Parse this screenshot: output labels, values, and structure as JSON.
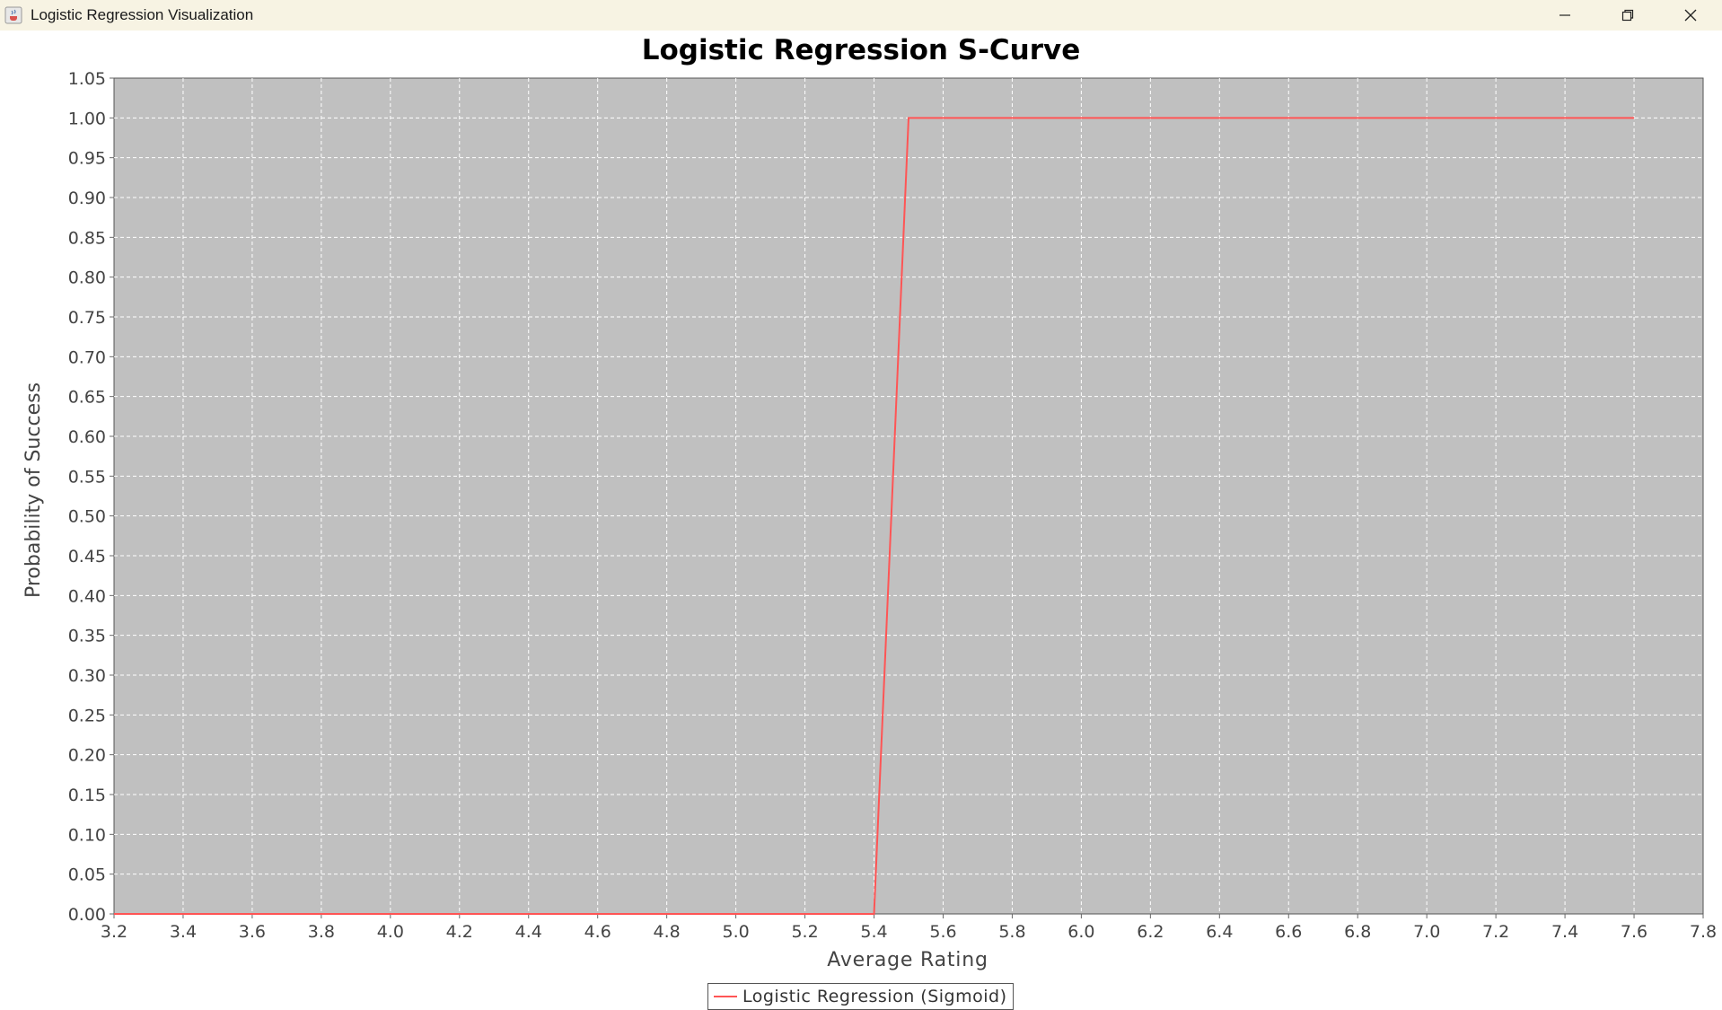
{
  "window": {
    "title": "Logistic Regression Visualization",
    "icon": "java-cup-icon",
    "controls": [
      "minimize-icon",
      "restore-icon",
      "close-icon"
    ]
  },
  "chart_data": {
    "type": "line",
    "title": "Logistic Regression S-Curve",
    "xlabel": "Average Rating",
    "ylabel": "Probability of Success",
    "xlim": [
      3.2,
      7.8
    ],
    "ylim": [
      0.0,
      1.05
    ],
    "x_ticks": [
      "3.2",
      "3.4",
      "3.6",
      "3.8",
      "4.0",
      "4.2",
      "4.4",
      "4.6",
      "4.8",
      "5.0",
      "5.2",
      "5.4",
      "5.6",
      "5.8",
      "6.0",
      "6.2",
      "6.4",
      "6.6",
      "6.8",
      "7.0",
      "7.2",
      "7.4",
      "7.6",
      "7.8"
    ],
    "y_ticks": [
      "0.00",
      "0.05",
      "0.10",
      "0.15",
      "0.20",
      "0.25",
      "0.30",
      "0.35",
      "0.40",
      "0.45",
      "0.50",
      "0.55",
      "0.60",
      "0.65",
      "0.70",
      "0.75",
      "0.80",
      "0.85",
      "0.90",
      "0.95",
      "1.00",
      "1.05"
    ],
    "grid": true,
    "legend_position": "bottom",
    "plot_background": "#c0c0c0",
    "series": [
      {
        "name": "Logistic Regression (Sigmoid)",
        "color": "#ff5555",
        "x": [
          3.2,
          5.4,
          5.5,
          7.6
        ],
        "y": [
          0.0,
          0.0,
          1.0,
          1.0
        ]
      }
    ]
  }
}
